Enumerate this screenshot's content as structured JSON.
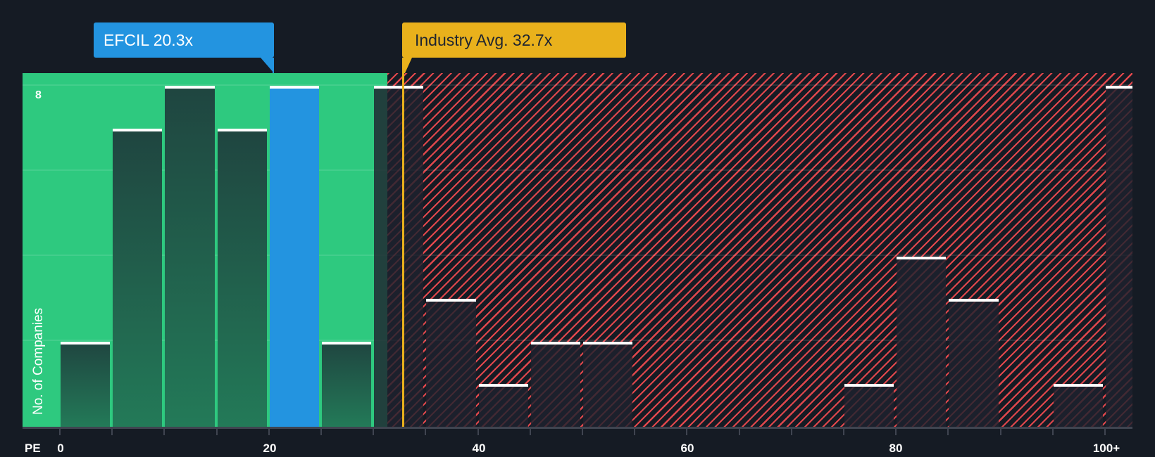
{
  "company_callout": {
    "label": "EFCIL 20.3x",
    "color": "#2394e0"
  },
  "industry_callout": {
    "label": "Industry Avg. 32.7x",
    "color": "#e9b11c"
  },
  "axis": {
    "x_title": "PE",
    "y_title": "No. of Companies",
    "y_tick_top": "8",
    "x_ticks": [
      "0",
      "20",
      "40",
      "60",
      "80",
      "100+"
    ]
  },
  "colors": {
    "background": "#151b24",
    "below_industry_zone": "#2ec97f",
    "above_industry_hatch": "#e0474c",
    "company_bar": "#2394e0",
    "bar_cap": "#ffffff"
  },
  "chart_data": {
    "type": "bar",
    "title": "PE distribution vs industry",
    "xlabel": "PE",
    "ylabel": "No. of Companies",
    "bin_width": 5,
    "categories": [
      "0-5",
      "5-10",
      "10-15",
      "15-20",
      "20-25",
      "25-30",
      "30-35",
      "35-40",
      "40-45",
      "45-50",
      "50-55",
      "55-60",
      "60-65",
      "65-70",
      "70-75",
      "75-80",
      "80-85",
      "85-90",
      "90-95",
      "95-100",
      "100+"
    ],
    "values": [
      2,
      7,
      8,
      7,
      8,
      2,
      8,
      3,
      1,
      2,
      2,
      0,
      0,
      0,
      0,
      1,
      4,
      3,
      0,
      1,
      8
    ],
    "highlight_bin": "20-25",
    "company": {
      "name": "EFCIL",
      "pe": 20.3
    },
    "industry_average": 32.7,
    "xlim": [
      0,
      100
    ],
    "ylim": [
      0,
      8
    ],
    "y_ticks_labeled": [
      8
    ],
    "gridlines_at": [
      2,
      4,
      6,
      8
    ],
    "x_tick_labels": [
      "0",
      "20",
      "40",
      "60",
      "80",
      "100+"
    ],
    "annotations": [
      "EFCIL 20.3x",
      "Industry Avg. 32.7x"
    ]
  }
}
